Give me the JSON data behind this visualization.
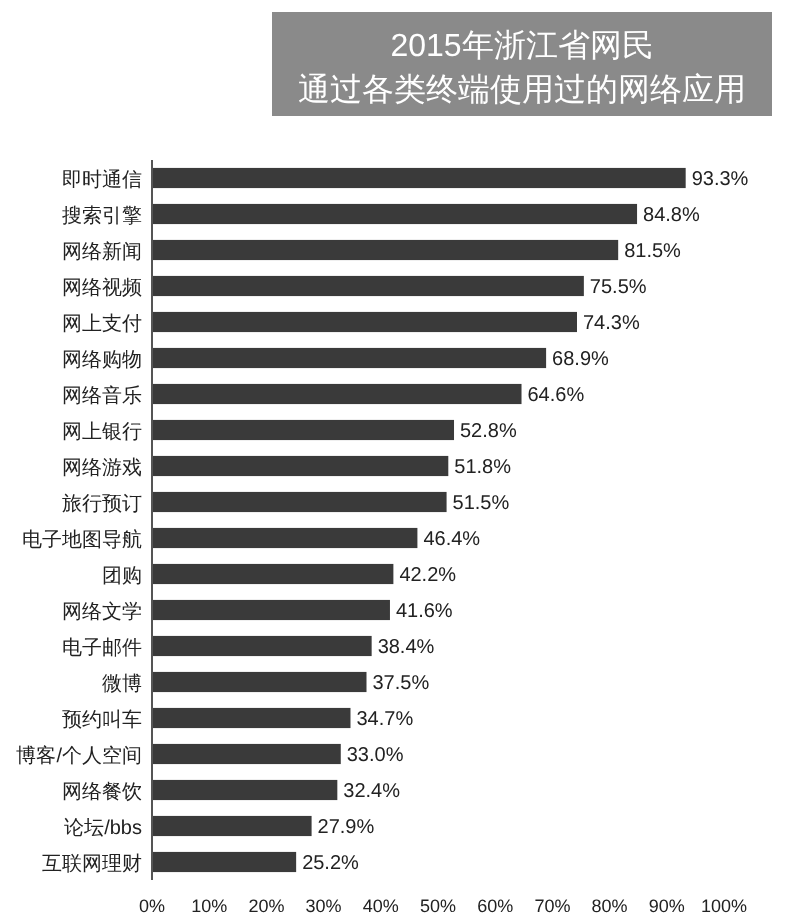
{
  "chart_data": {
    "type": "bar",
    "orientation": "horizontal",
    "title": "2015年浙江省网民",
    "subtitle": "通过各类终端使用过的网络应用",
    "categories": [
      "即时通信",
      "搜索引擎",
      "网络新闻",
      "网络视频",
      "网上支付",
      "网络购物",
      "网络音乐",
      "网上银行",
      "网络游戏",
      "旅行预订",
      "电子地图导航",
      "团购",
      "网络文学",
      "电子邮件",
      "微博",
      "预约叫车",
      "博客/个人空间",
      "网络餐饮",
      "论坛/bbs",
      "互联网理财"
    ],
    "values": [
      93.3,
      84.8,
      81.5,
      75.5,
      74.3,
      68.9,
      64.6,
      52.8,
      51.8,
      51.5,
      46.4,
      42.2,
      41.6,
      38.4,
      37.5,
      34.7,
      33.0,
      32.4,
      27.9,
      25.2
    ],
    "value_labels": [
      "93.3%",
      "84.8%",
      "81.5%",
      "75.5%",
      "74.3%",
      "68.9%",
      "64.6%",
      "52.8%",
      "51.8%",
      "51.5%",
      "46.4%",
      "42.2%",
      "41.6%",
      "38.4%",
      "37.5%",
      "34.7%",
      "33.0%",
      "32.4%",
      "27.9%",
      "25.2%"
    ],
    "color": "#3a3a3a",
    "xlim": [
      0,
      100
    ],
    "xticks": [
      {
        "value": 0,
        "label": "0%"
      },
      {
        "value": 10,
        "label": "10%"
      },
      {
        "value": 20,
        "label": "20%"
      },
      {
        "value": 30,
        "label": "30%"
      },
      {
        "value": 40,
        "label": "40%"
      },
      {
        "value": 50,
        "label": "50%"
      },
      {
        "value": 60,
        "label": "60%"
      },
      {
        "value": 70,
        "label": "70%"
      },
      {
        "value": 80,
        "label": "80%"
      },
      {
        "value": 90,
        "label": "90%"
      },
      {
        "value": 100,
        "label": "100%"
      }
    ],
    "grid": false
  }
}
